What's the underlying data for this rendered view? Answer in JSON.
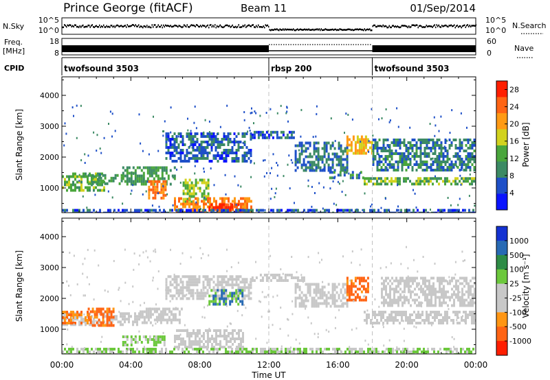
{
  "header": {
    "station": "Prince George (fitACF)",
    "beam": "Beam 11",
    "date": "01/Sep/2014"
  },
  "summary": {
    "left_labels": {
      "nsky": "N.Sky",
      "freq": "Freq.",
      "freq_unit": "[MHz]",
      "cpid": "CPID"
    },
    "right_labels": {
      "nsearch": "N.Search",
      "nave": "Nave"
    },
    "nsky_ticks": [
      "10^5",
      "10^0"
    ],
    "nsearch_ticks": [
      "10^5",
      "10^0"
    ],
    "freq_ticks": [
      "18",
      "8"
    ],
    "nave_ticks": [
      "60",
      "0"
    ],
    "cpid_segments": [
      {
        "label": "twofsound 3503",
        "start_hour": 0,
        "end_hour": 12
      },
      {
        "label": "rbsp 200",
        "start_hour": 12,
        "end_hour": 18
      },
      {
        "label": "twofsound 3503",
        "start_hour": 18,
        "end_hour": 24
      }
    ]
  },
  "colors": {
    "power_scale": [
      "#0a14ff",
      "#1e50c8",
      "#3c8a64",
      "#4aa63c",
      "#d2d21e",
      "#ff9a14",
      "#ff6414",
      "#ff1e00"
    ],
    "velocity_scale": [
      "#1432d2",
      "#286ab4",
      "#2e8c46",
      "#6cc83c",
      "#c8c8c8",
      "#c8c8c8",
      "#ff9614",
      "#ff6414",
      "#ff1e00"
    ]
  },
  "chart_data": [
    {
      "type": "heatmap",
      "panel": "power",
      "xlabel": "",
      "ylabel": "Slant Range [km]",
      "xlim": [
        0,
        24
      ],
      "ylim": [
        200,
        4600
      ],
      "y_ticks": [
        "1000",
        "2000",
        "3000",
        "4000"
      ],
      "colorbar": {
        "label": "Power [dB]",
        "ticks": [
          "4",
          "8",
          "12",
          "16",
          "20",
          "24",
          "28"
        ],
        "range": [
          0,
          30
        ]
      },
      "bands": [
        {
          "x0": 0.0,
          "x1": 2.5,
          "y0": 900,
          "y1": 1500,
          "level": 14
        },
        {
          "x0": 1.5,
          "x1": 3.5,
          "y0": 1150,
          "y1": 1450,
          "level": 12
        },
        {
          "x0": 3.5,
          "x1": 6.5,
          "y0": 1100,
          "y1": 1700,
          "level": 12
        },
        {
          "x0": 5.0,
          "x1": 6.0,
          "y0": 650,
          "y1": 1250,
          "level": 24
        },
        {
          "x0": 6.0,
          "x1": 11.0,
          "y0": 1900,
          "y1": 2800,
          "level": 7
        },
        {
          "x0": 7.0,
          "x1": 8.5,
          "y0": 500,
          "y1": 1300,
          "level": 16
        },
        {
          "x0": 6.5,
          "x1": 11.0,
          "y0": 200,
          "y1": 700,
          "level": 24
        },
        {
          "x0": 8.5,
          "x1": 10.5,
          "y0": 250,
          "y1": 500,
          "level": 28
        },
        {
          "x0": 11.0,
          "x1": 13.5,
          "y0": 2650,
          "y1": 2850,
          "level": 6
        },
        {
          "x0": 13.5,
          "x1": 16.5,
          "y0": 1600,
          "y1": 2500,
          "level": 8
        },
        {
          "x0": 15.5,
          "x1": 17.5,
          "y0": 1350,
          "y1": 1550,
          "level": 10
        },
        {
          "x0": 16.5,
          "x1": 18.0,
          "y0": 2100,
          "y1": 2700,
          "level": 20
        },
        {
          "x0": 17.5,
          "x1": 24.0,
          "y0": 1150,
          "y1": 1350,
          "level": 14
        },
        {
          "x0": 18.0,
          "x1": 24.0,
          "y0": 1600,
          "y1": 2600,
          "level": 9
        },
        {
          "x0": 0.0,
          "x1": 24.0,
          "y0": 200,
          "y1": 320,
          "level": 6
        }
      ]
    },
    {
      "type": "heatmap",
      "panel": "velocity",
      "xlabel": "Time UT",
      "ylabel": "Slant Range [km]",
      "xlim": [
        0,
        24
      ],
      "ylim": [
        200,
        4600
      ],
      "x_ticks": [
        "00:00",
        "04:00",
        "08:00",
        "12:00",
        "16:00",
        "20:00",
        "00:00"
      ],
      "y_ticks": [
        "1000",
        "2000",
        "3000",
        "4000"
      ],
      "colorbar": {
        "label": "Velocity [m s⁻¹]",
        "ticks": [
          "1000",
          "500",
          "100",
          "25",
          "-25",
          "-100",
          "-500",
          "-1000"
        ],
        "range": [
          -1000,
          1000
        ]
      },
      "bands": [
        {
          "x0": 0.0,
          "x1": 4.5,
          "y0": 1150,
          "y1": 1550,
          "value": 0
        },
        {
          "x0": 1.5,
          "x1": 3.0,
          "y0": 1100,
          "y1": 1700,
          "value": -400
        },
        {
          "x0": 0.0,
          "x1": 1.5,
          "y0": 1200,
          "y1": 1600,
          "value": -300
        },
        {
          "x0": 4.5,
          "x1": 7.0,
          "y0": 1200,
          "y1": 1700,
          "value": 0
        },
        {
          "x0": 6.0,
          "x1": 11.0,
          "y0": 2000,
          "y1": 2750,
          "value": 0
        },
        {
          "x0": 6.5,
          "x1": 10.5,
          "y0": 400,
          "y1": 1000,
          "value": 0
        },
        {
          "x0": 8.5,
          "x1": 10.5,
          "y0": 1800,
          "y1": 2300,
          "value": 300
        },
        {
          "x0": 11.0,
          "x1": 14.0,
          "y0": 2550,
          "y1": 2800,
          "value": 0
        },
        {
          "x0": 13.5,
          "x1": 16.5,
          "y0": 1700,
          "y1": 2500,
          "value": 0
        },
        {
          "x0": 16.5,
          "x1": 17.8,
          "y0": 1900,
          "y1": 2700,
          "value": -400
        },
        {
          "x0": 17.5,
          "x1": 24.0,
          "y0": 1200,
          "y1": 1600,
          "value": 0
        },
        {
          "x0": 18.5,
          "x1": 24.0,
          "y0": 1800,
          "y1": 2700,
          "value": 0
        },
        {
          "x0": 0.0,
          "x1": 24.0,
          "y0": 200,
          "y1": 400,
          "value": 80
        },
        {
          "x0": 3.5,
          "x1": 6.0,
          "y0": 500,
          "y1": 800,
          "value": 80
        }
      ]
    }
  ]
}
